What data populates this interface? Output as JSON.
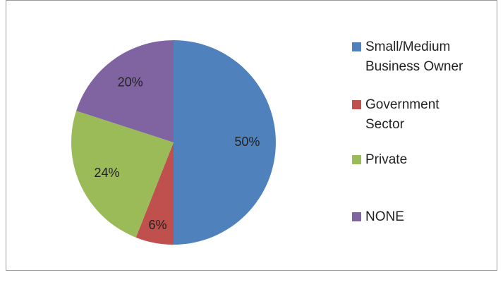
{
  "chart_data": {
    "type": "pie",
    "categories": [
      "Small/Medium Business Owner",
      "Government Sector",
      "Private",
      "NONE"
    ],
    "values": [
      50,
      6,
      24,
      20
    ],
    "value_labels": [
      "50%",
      "6%",
      "24%",
      "20%"
    ],
    "colors": [
      "#4f81bd",
      "#c0504d",
      "#9bbb59",
      "#8064a2"
    ],
    "legend": "right"
  }
}
